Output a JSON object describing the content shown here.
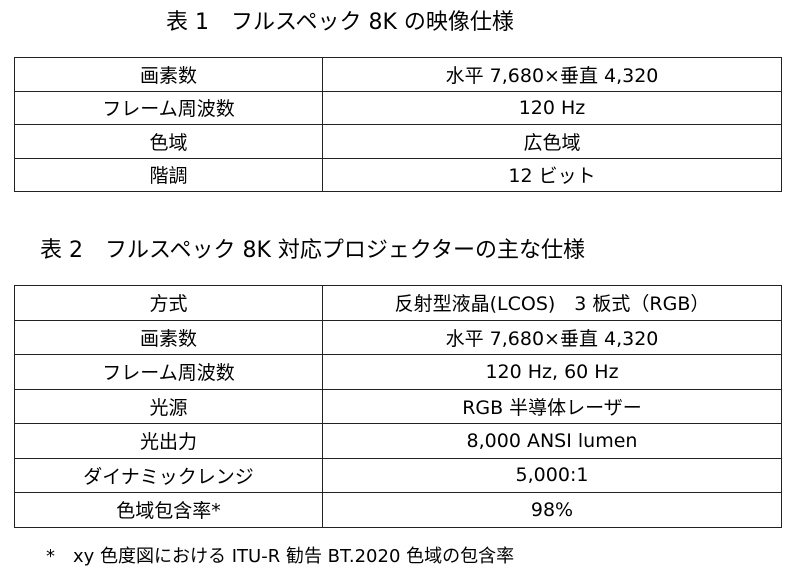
{
  "table1": {
    "title": "表 1　フルスペック 8K の映像仕様",
    "rows": [
      {
        "label": "画素数",
        "value": "水平 7,680×垂直 4,320"
      },
      {
        "label": "フレーム周波数",
        "value": "120 Hz"
      },
      {
        "label": "色域",
        "value": "広色域"
      },
      {
        "label": "階調",
        "value": "12 ビット"
      }
    ]
  },
  "table2": {
    "title": "表 2　フルスペック 8K 対応プロジェクターの主な仕様",
    "rows": [
      {
        "label": "方式",
        "value": "反射型液晶(LCOS)　3 板式（RGB）"
      },
      {
        "label": "画素数",
        "value": "水平 7,680×垂直 4,320"
      },
      {
        "label": "フレーム周波数",
        "value": "120 Hz, 60 Hz"
      },
      {
        "label": "光源",
        "value": "RGB 半導体レーザー"
      },
      {
        "label": "光出力",
        "value": "8,000 ANSI lumen"
      },
      {
        "label": "ダイナミックレンジ",
        "value": "5,000:1"
      },
      {
        "label": "色域包含率*",
        "value": "98%"
      }
    ]
  },
  "footnote": "*　xy 色度図における ITU-R 勧告 BT.2020 色域の包含率"
}
